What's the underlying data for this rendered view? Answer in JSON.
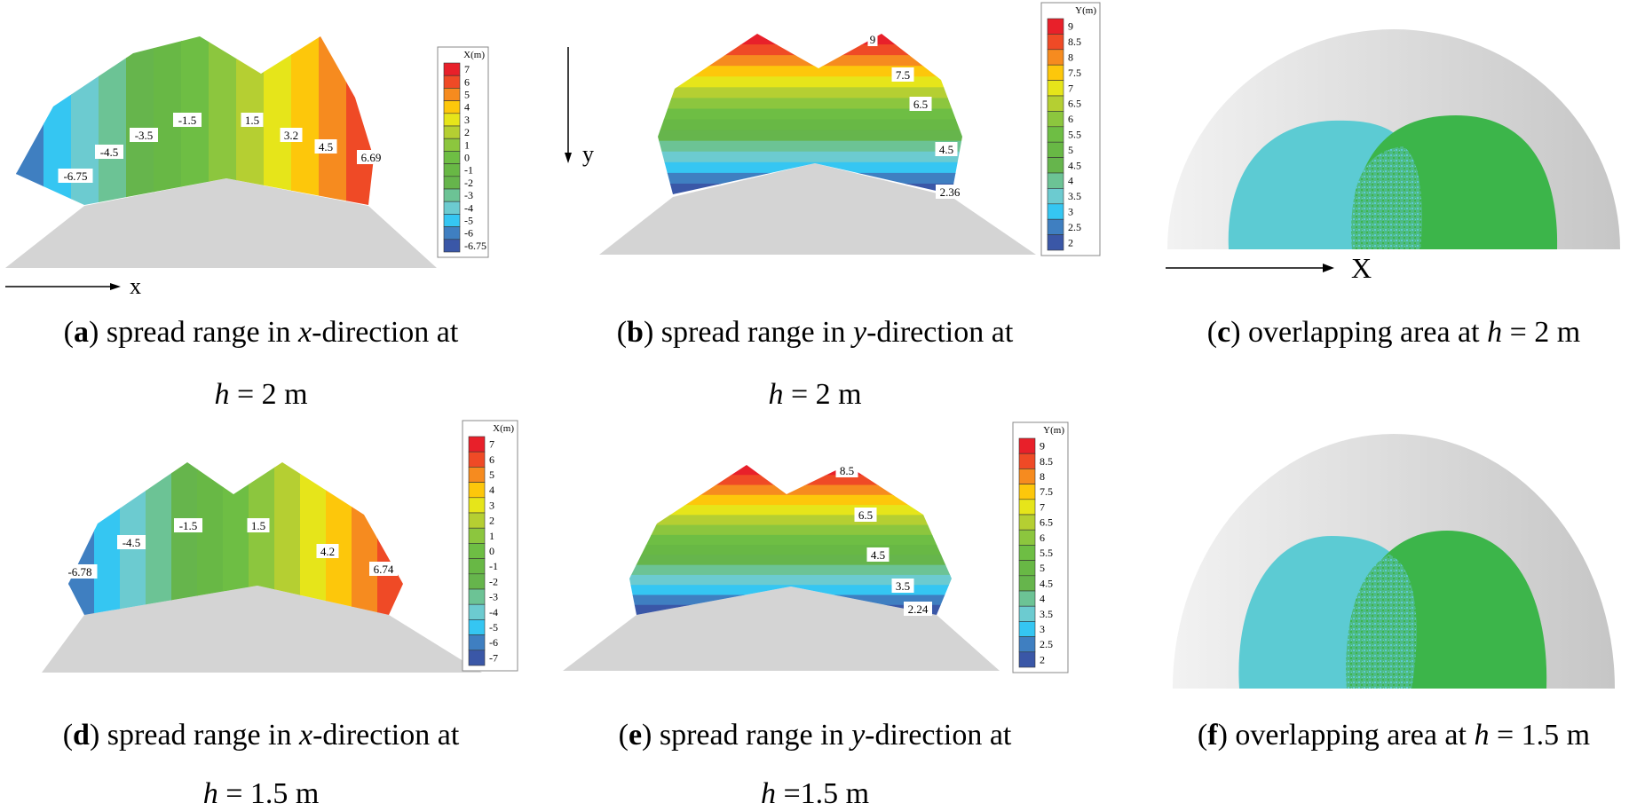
{
  "colors": {
    "scale": [
      "#e8202a",
      "#ef4a26",
      "#f68b1f",
      "#fdc70b",
      "#e6e51a",
      "#b5cf32",
      "#8cc63e",
      "#6ebe44",
      "#68b845",
      "#66b54c",
      "#6cc395",
      "#6ccbd0",
      "#35c6f2",
      "#3f7fc1",
      "#3a57a7"
    ],
    "ground": "#d4d4d4",
    "cyan_region": "#5ccbd3",
    "green_region": "#3cb54a"
  },
  "axes": {
    "x_label": "x",
    "y_label": "y",
    "X_label": "X"
  },
  "panels": {
    "a": {
      "caption_tag": "a",
      "caption_text": " spread range in ",
      "caption_var": "x",
      "caption_rest": "-direction at",
      "caption_line2_var": "h",
      "caption_line2": " = 2 m",
      "legend_title": "X(m)",
      "legend_labels": [
        "7",
        "6",
        "5",
        "4",
        "3",
        "2",
        "1",
        "0",
        "-1",
        "-2",
        "-3",
        "-4",
        "-5",
        "-6",
        "-6.75"
      ],
      "contour_labels": [
        "-6.75",
        "-4.5",
        "-3.5",
        "-1.5",
        "1.5",
        "3.2",
        "4.5",
        "6.69"
      ]
    },
    "b": {
      "caption_tag": "b",
      "caption_text": " spread range in ",
      "caption_var": "y",
      "caption_rest": "-direction at",
      "caption_line2_var": "h",
      "caption_line2": " = 2 m",
      "legend_title": "Y(m)",
      "legend_labels": [
        "9",
        "8.5",
        "8",
        "7.5",
        "7",
        "6.5",
        "6",
        "5.5",
        "5",
        "4.5",
        "4",
        "3.5",
        "3",
        "2.5",
        "2"
      ],
      "contour_labels": [
        "9",
        "7.5",
        "6.5",
        "4.5",
        "2.36"
      ]
    },
    "c": {
      "caption_tag": "c",
      "caption_text": " overlapping area at ",
      "caption_var": "h",
      "caption_rest": " = 2 m"
    },
    "d": {
      "caption_tag": "d",
      "caption_text": " spread range in ",
      "caption_var": "x",
      "caption_rest": "-direction at",
      "caption_line2_var": "h",
      "caption_line2": " = 1.5 m",
      "legend_title": "X(m)",
      "legend_labels": [
        "7",
        "6",
        "5",
        "4",
        "3",
        "2",
        "1",
        "0",
        "-1",
        "-2",
        "-3",
        "-4",
        "-5",
        "-6",
        "-7"
      ],
      "contour_labels": [
        "-6.78",
        "-4.5",
        "-1.5",
        "1.5",
        "4.2",
        "6.74"
      ]
    },
    "e": {
      "caption_tag": "e",
      "caption_text": " spread range in ",
      "caption_var": "y",
      "caption_rest": "-direction at",
      "caption_line2_var": "h",
      "caption_line2": " =1.5 m",
      "legend_title": "Y(m)",
      "legend_labels": [
        "9",
        "8.5",
        "8",
        "7.5",
        "7",
        "6.5",
        "6",
        "5.5",
        "5",
        "4.5",
        "4",
        "3.5",
        "3",
        "2.5",
        "2"
      ],
      "contour_labels": [
        "8.5",
        "6.5",
        "4.5",
        "3.5",
        "2.24"
      ]
    },
    "f": {
      "caption_tag": "f",
      "caption_text": " overlapping area at ",
      "caption_var": "h",
      "caption_rest": " = 1.5 m"
    }
  }
}
